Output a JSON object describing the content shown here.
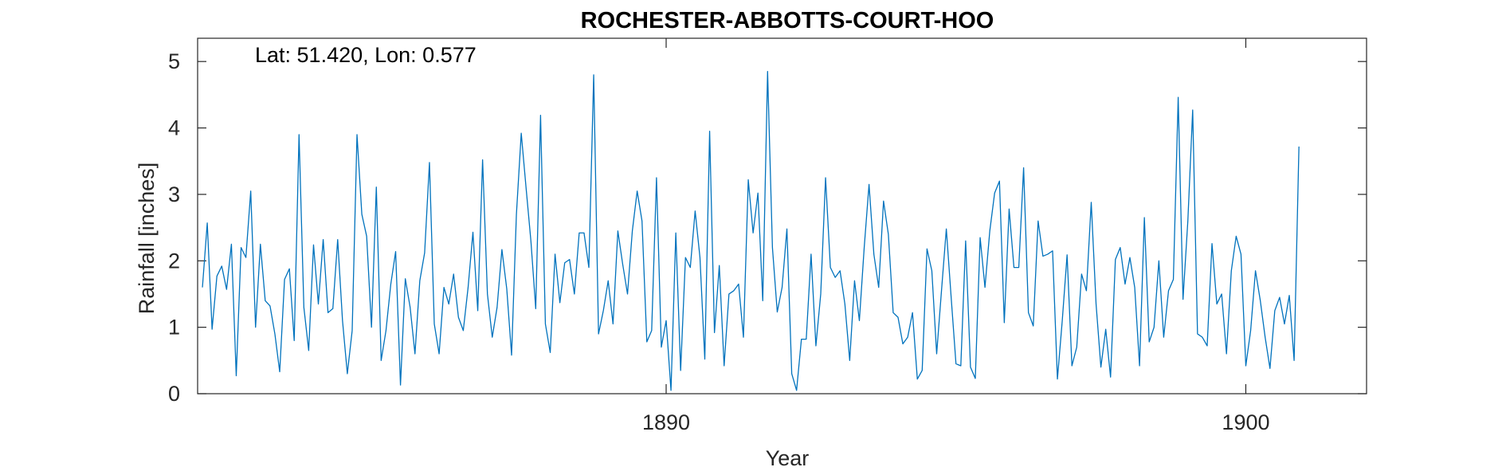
{
  "chart_data": {
    "type": "line",
    "title": "ROCHESTER-ABBOTTS-COURT-HOO",
    "annotation": "Lat: 51.420, Lon: 0.577",
    "xlabel": "Year",
    "ylabel": "Rainfall [inches]",
    "xlim": [
      1881.917,
      1902.083
    ],
    "ylim": [
      0,
      5.35
    ],
    "x_ticks": [
      1890,
      1900
    ],
    "y_ticks": [
      0,
      1,
      2,
      3,
      4,
      5
    ],
    "grid": false,
    "line_color": "#0072BD",
    "start": "1882-01",
    "step": "monthly",
    "series": [
      {
        "values": [
          1.6,
          2.57,
          0.97,
          1.77,
          1.92,
          1.57,
          2.25,
          0.27,
          2.2,
          2.05,
          3.05,
          1.0,
          2.25,
          1.4,
          1.32,
          0.9,
          0.33,
          1.72,
          1.88,
          0.8,
          3.9,
          1.3,
          0.65,
          2.24,
          1.35,
          2.32,
          1.22,
          1.28,
          2.32,
          1.1,
          0.3,
          0.95,
          3.9,
          2.7,
          2.37,
          1.0,
          3.11,
          0.5,
          0.95,
          1.65,
          2.14,
          0.13,
          1.73,
          1.3,
          0.6,
          1.7,
          2.12,
          3.48,
          1.05,
          0.6,
          1.6,
          1.35,
          1.8,
          1.15,
          0.95,
          1.6,
          2.43,
          1.25,
          3.52,
          1.5,
          0.85,
          1.3,
          2.17,
          1.58,
          0.58,
          2.7,
          3.92,
          3.1,
          2.3,
          1.28,
          4.19,
          1.05,
          0.62,
          2.1,
          1.37,
          1.97,
          2.02,
          1.5,
          2.42,
          2.42,
          1.9,
          4.8,
          0.9,
          1.25,
          1.7,
          1.05,
          2.45,
          1.95,
          1.5,
          2.45,
          3.05,
          2.6,
          0.78,
          0.95,
          3.25,
          0.7,
          1.1,
          0.05,
          2.42,
          0.35,
          2.05,
          1.9,
          2.75,
          2.05,
          0.52,
          3.95,
          0.92,
          1.93,
          0.42,
          1.5,
          1.55,
          1.65,
          0.85,
          3.22,
          2.42,
          3.02,
          1.4,
          4.85,
          2.2,
          1.23,
          1.6,
          2.48,
          0.3,
          0.05,
          0.82,
          0.82,
          2.1,
          0.72,
          1.5,
          3.25,
          1.9,
          1.75,
          1.85,
          1.35,
          0.5,
          1.7,
          1.1,
          2.2,
          3.15,
          2.1,
          1.6,
          2.9,
          2.4,
          1.22,
          1.15,
          0.75,
          0.85,
          1.22,
          0.22,
          0.35,
          2.18,
          1.85,
          0.6,
          1.55,
          2.48,
          1.45,
          0.45,
          0.42,
          2.3,
          0.4,
          0.23,
          2.35,
          1.6,
          2.45,
          3.02,
          3.2,
          1.07,
          2.78,
          1.9,
          1.9,
          3.4,
          1.22,
          1.02,
          2.6,
          2.07,
          2.1,
          2.15,
          0.22,
          1.1,
          2.09,
          0.42,
          0.7,
          1.8,
          1.55,
          2.88,
          1.35,
          0.4,
          0.97,
          0.25,
          2.02,
          2.2,
          1.65,
          2.05,
          1.6,
          0.42,
          2.65,
          0.78,
          1.0,
          2.0,
          0.85,
          1.55,
          1.72,
          4.46,
          1.42,
          2.6,
          4.27,
          0.9,
          0.85,
          0.72,
          2.26,
          1.35,
          1.5,
          0.6,
          1.85,
          2.37,
          2.1,
          0.42,
          0.95,
          1.85,
          1.4,
          0.85,
          0.38,
          1.25,
          1.45,
          1.05,
          1.48,
          0.5,
          3.72
        ]
      }
    ]
  }
}
